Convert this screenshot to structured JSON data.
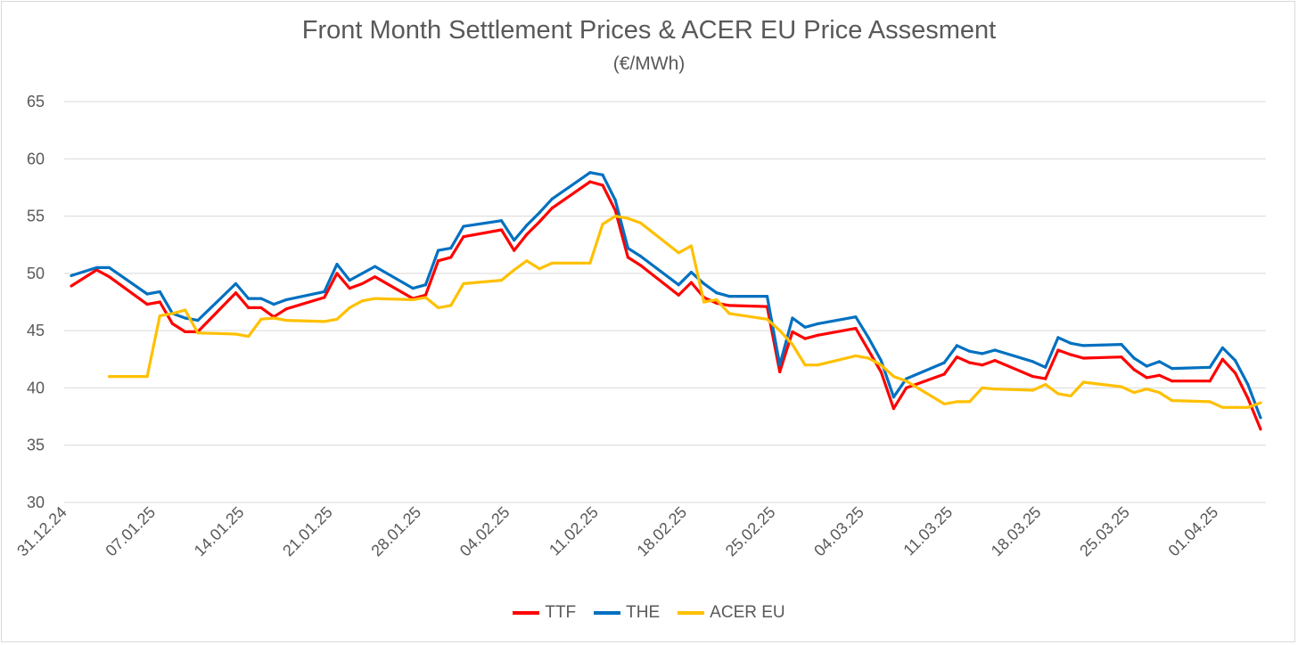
{
  "chart_data": {
    "type": "line",
    "title": "Front Month Settlement Prices & ACER EU Price Assesment",
    "subtitle": "(€/MWh)",
    "x_unit": "days since 31.12.24",
    "xlabel": "",
    "ylabel": "",
    "ylim": [
      30,
      65
    ],
    "yticks": [
      30,
      35,
      40,
      45,
      50,
      55,
      60,
      65
    ],
    "xlim": [
      0,
      94
    ],
    "xticks": [
      {
        "day": 0,
        "label": "31.12.24"
      },
      {
        "day": 7,
        "label": "07.01.25"
      },
      {
        "day": 14,
        "label": "14.01.25"
      },
      {
        "day": 21,
        "label": "21.01.25"
      },
      {
        "day": 28,
        "label": "28.01.25"
      },
      {
        "day": 35,
        "label": "04.02.25"
      },
      {
        "day": 42,
        "label": "11.02.25"
      },
      {
        "day": 49,
        "label": "18.02.25"
      },
      {
        "day": 56,
        "label": "25.02.25"
      },
      {
        "day": 63,
        "label": "04.03.25"
      },
      {
        "day": 70,
        "label": "11.03.25"
      },
      {
        "day": 77,
        "label": "18.03.25"
      },
      {
        "day": 84,
        "label": "25.03.25"
      },
      {
        "day": 91,
        "label": "01.04.25"
      }
    ],
    "grid": true,
    "legend_position": "bottom",
    "x": [
      0,
      2,
      3,
      6,
      7,
      8,
      9,
      10,
      13,
      14,
      15,
      16,
      17,
      20,
      21,
      22,
      23,
      24,
      27,
      28,
      29,
      30,
      31,
      34,
      35,
      36,
      37,
      38,
      41,
      42,
      43,
      44,
      45,
      48,
      49,
      50,
      51,
      52,
      55,
      56,
      57,
      58,
      59,
      62,
      63,
      64,
      65,
      66,
      69,
      70,
      71,
      72,
      73,
      76,
      77,
      78,
      79,
      80,
      83,
      84,
      85,
      86,
      87,
      90,
      91,
      92,
      93,
      94
    ],
    "series": [
      {
        "name": "TTF",
        "color": "#ff0000",
        "values": [
          48.9,
          50.3,
          49.7,
          47.3,
          47.5,
          45.6,
          44.9,
          44.9,
          48.3,
          47.0,
          47.0,
          46.2,
          46.9,
          47.9,
          50.0,
          48.7,
          49.1,
          49.7,
          47.8,
          48.1,
          51.1,
          51.4,
          53.2,
          53.8,
          52.0,
          53.4,
          54.5,
          55.7,
          58.0,
          57.7,
          55.5,
          51.4,
          50.7,
          48.1,
          49.2,
          47.9,
          47.4,
          47.2,
          47.1,
          41.4,
          44.9,
          44.3,
          44.6,
          45.2,
          43.3,
          41.4,
          38.2,
          40.0,
          41.2,
          42.7,
          42.2,
          42.0,
          42.4,
          41.0,
          40.8,
          43.3,
          42.9,
          42.6,
          42.7,
          41.6,
          40.9,
          41.1,
          40.6,
          40.6,
          42.5,
          41.3,
          39.1,
          36.4
        ]
      },
      {
        "name": "THE",
        "color": "#0070c0",
        "values": [
          49.8,
          50.5,
          50.5,
          48.2,
          48.4,
          46.5,
          46.1,
          45.9,
          49.1,
          47.8,
          47.8,
          47.3,
          47.7,
          48.4,
          50.8,
          49.4,
          50.0,
          50.6,
          48.7,
          49.0,
          52.0,
          52.2,
          54.1,
          54.6,
          52.9,
          54.2,
          55.3,
          56.5,
          58.8,
          58.6,
          56.4,
          52.2,
          51.5,
          49.0,
          50.1,
          49.1,
          48.3,
          48.0,
          48.0,
          42.0,
          46.1,
          45.3,
          45.6,
          46.2,
          44.4,
          42.4,
          39.2,
          40.8,
          42.2,
          43.7,
          43.2,
          43.0,
          43.3,
          42.3,
          41.8,
          44.4,
          43.9,
          43.7,
          43.8,
          42.6,
          41.9,
          42.3,
          41.7,
          41.8,
          43.5,
          42.4,
          40.3,
          37.4
        ]
      },
      {
        "name": "ACER EU",
        "color": "#ffc000",
        "values": [
          null,
          null,
          41.0,
          41.0,
          46.3,
          46.5,
          46.8,
          44.8,
          44.7,
          44.5,
          46.0,
          46.1,
          45.9,
          45.8,
          46.0,
          47.0,
          47.6,
          47.8,
          47.7,
          47.9,
          47.0,
          47.2,
          49.1,
          49.4,
          50.3,
          51.1,
          50.4,
          50.9,
          50.9,
          54.3,
          55.0,
          54.8,
          54.4,
          51.8,
          52.4,
          47.5,
          47.7,
          46.5,
          46.0,
          45.0,
          43.8,
          42.0,
          42.0,
          42.8,
          42.6,
          42.0,
          41.0,
          40.6,
          38.6,
          38.8,
          38.8,
          40.0,
          39.9,
          39.8,
          40.3,
          39.5,
          39.3,
          40.5,
          40.1,
          39.6,
          39.9,
          39.6,
          38.9,
          38.8,
          38.3,
          38.3,
          38.3,
          38.7
        ]
      }
    ]
  }
}
